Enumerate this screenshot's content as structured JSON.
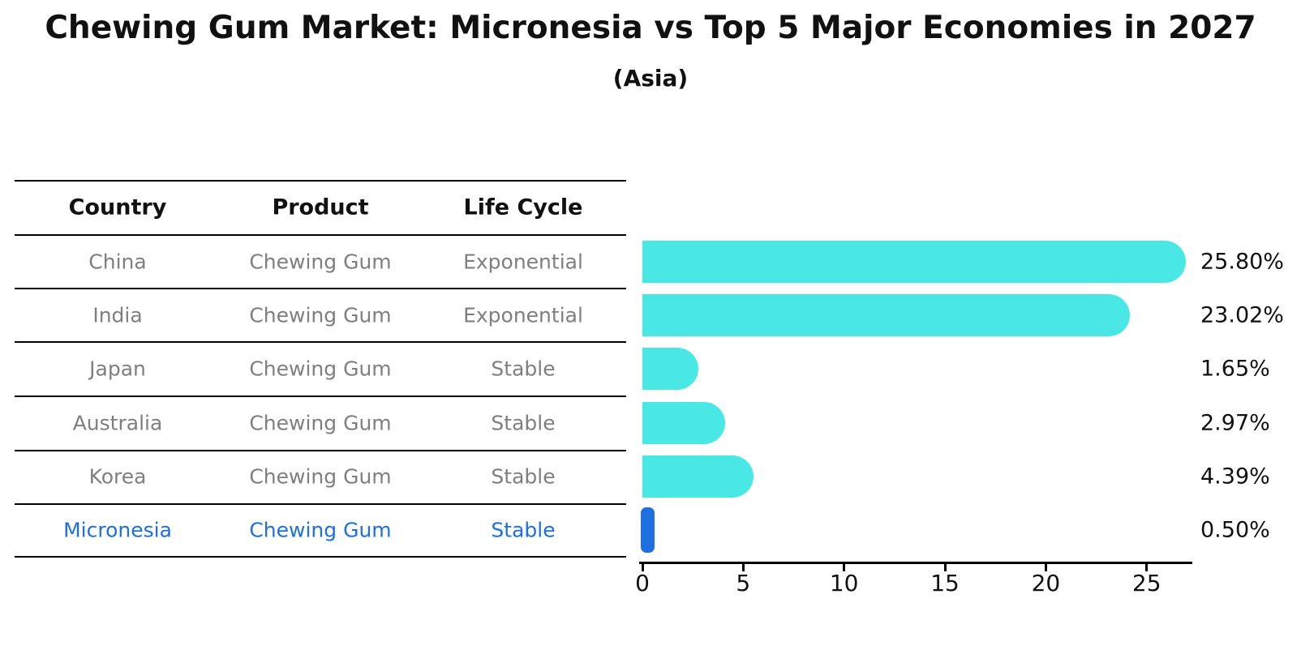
{
  "title": "Chewing Gum Market: Micronesia vs Top 5 Major Economies in 2027",
  "subtitle": "(Asia)",
  "colors": {
    "bar_cyan": "#4AE8E4",
    "highlight_blue": "#1E6FE0",
    "row_text_gray": "#7f7f7f",
    "text_black": "#111111"
  },
  "table": {
    "headers": [
      "Country",
      "Product",
      "Life Cycle"
    ],
    "rows": [
      {
        "country": "China",
        "product": "Chewing Gum",
        "life_cycle": "Exponential",
        "highlight": false
      },
      {
        "country": "India",
        "product": "Chewing Gum",
        "life_cycle": "Exponential",
        "highlight": false
      },
      {
        "country": "Japan",
        "product": "Chewing Gum",
        "life_cycle": "Stable",
        "highlight": false
      },
      {
        "country": "Australia",
        "product": "Chewing Gum",
        "life_cycle": "Stable",
        "highlight": false
      },
      {
        "country": "Korea",
        "product": "Chewing Gum",
        "life_cycle": "Stable",
        "highlight": false
      },
      {
        "country": "Micronesia",
        "product": "Chewing Gum",
        "life_cycle": "Stable",
        "highlight": true
      }
    ]
  },
  "chart_data": {
    "type": "bar",
    "orientation": "horizontal",
    "title": "Chewing Gum Market: Micronesia vs Top 5 Major Economies in 2027",
    "subtitle": "(Asia)",
    "categories": [
      "China",
      "India",
      "Japan",
      "Australia",
      "Korea",
      "Micronesia"
    ],
    "values": [
      25.8,
      23.02,
      1.65,
      2.97,
      4.39,
      0.5
    ],
    "value_labels": [
      "25.80%",
      "23.02%",
      "1.65%",
      "2.97%",
      "4.39%",
      "0.50%"
    ],
    "x_ticks": [
      0,
      5,
      10,
      15,
      20,
      25
    ],
    "xlim": [
      0,
      27.4
    ],
    "grid": false,
    "legend": null,
    "highlight_category": "Micronesia",
    "bar_color": "#4AE8E4",
    "highlight_color": "#1E6FE0"
  }
}
